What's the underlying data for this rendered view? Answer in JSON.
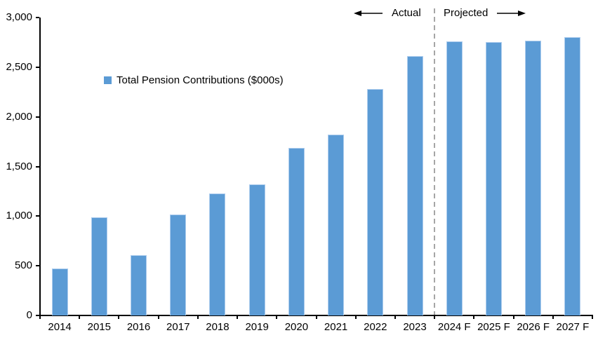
{
  "chart_data": {
    "type": "bar",
    "title": "",
    "legend": "Total Pension Contributions ($000s)",
    "categories": [
      "2014",
      "2015",
      "2016",
      "2017",
      "2018",
      "2019",
      "2020",
      "2021",
      "2022",
      "2023",
      "2024 F",
      "2025 F",
      "2026 F",
      "2027 F"
    ],
    "values": [
      470,
      990,
      610,
      1020,
      1230,
      1320,
      1690,
      1820,
      2280,
      2610,
      2760,
      2750,
      2770,
      2800
    ],
    "ylim": [
      0,
      3000
    ],
    "yticks": [
      0,
      500,
      1000,
      1500,
      2000,
      2500,
      3000
    ],
    "ytick_labels": [
      "0",
      "500",
      "1,000",
      "1,500",
      "2,000",
      "2,500",
      "3,000"
    ],
    "grid": false,
    "legend_position": "upper-left-area",
    "bar_color": "#5B9BD5",
    "bar_edge_color": "#AECDEE",
    "axis_color": "#000000",
    "divider_color": "#A6A6A6",
    "annotations": {
      "actual_label": "Actual",
      "projected_label": "Projected",
      "divider_between": [
        "2023",
        "2024 F"
      ]
    }
  }
}
